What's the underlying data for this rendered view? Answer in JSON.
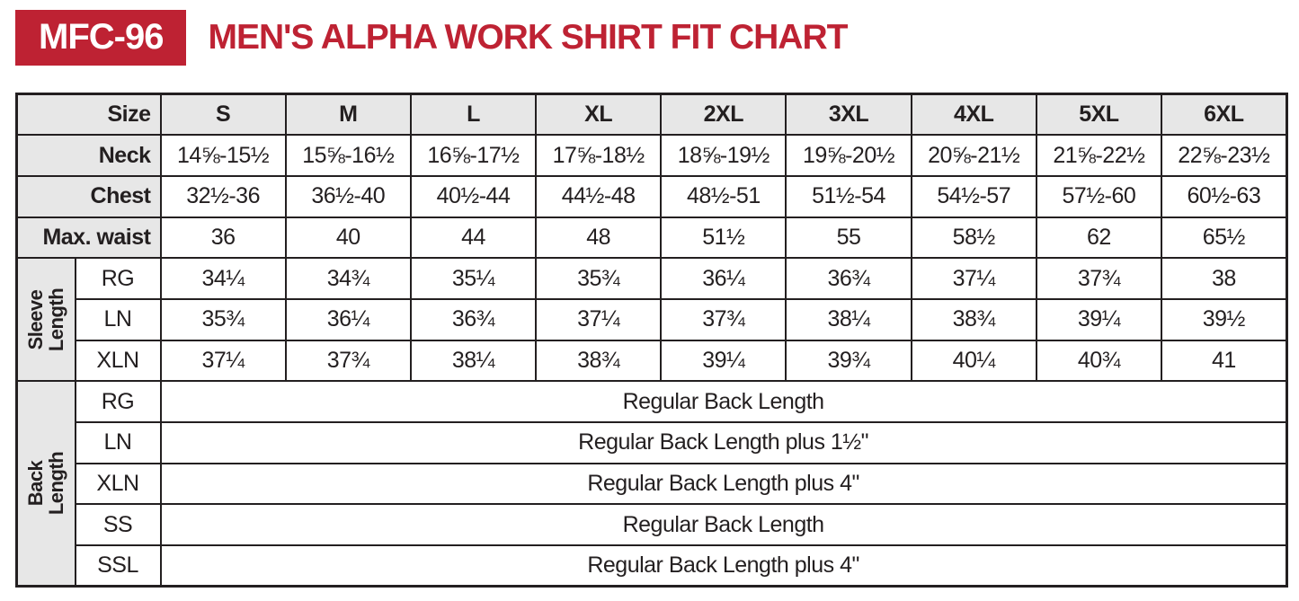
{
  "page": {
    "model_badge": "MFC-96",
    "title": "MEN'S ALPHA WORK SHIRT FIT CHART"
  },
  "colors": {
    "accent_red": "#be2233",
    "header_fill": "#e7e7e7",
    "border": "#231f20"
  },
  "chart_data": {
    "type": "table",
    "title": "MEN'S ALPHA WORK SHIRT FIT CHART",
    "model": "MFC-96",
    "size_header_label": "Size",
    "sizes": [
      "S",
      "M",
      "L",
      "XL",
      "2XL",
      "3XL",
      "4XL",
      "5XL",
      "6XL"
    ],
    "rows": [
      {
        "label": "Neck",
        "values": [
          "14⅝-15½",
          "15⅝-16½",
          "16⅝-17½",
          "17⅝-18½",
          "18⅝-19½",
          "19⅝-20½",
          "20⅝-21½",
          "21⅝-22½",
          "22⅝-23½"
        ]
      },
      {
        "label": "Chest",
        "values": [
          "32½-36",
          "36½-40",
          "40½-44",
          "44½-48",
          "48½-51",
          "51½-54",
          "54½-57",
          "57½-60",
          "60½-63"
        ]
      },
      {
        "label": "Max. waist",
        "values": [
          "36",
          "40",
          "44",
          "48",
          "51½",
          "55",
          "58½",
          "62",
          "65½"
        ]
      }
    ],
    "sleeve_length": {
      "group_label": "Sleeve Length",
      "rows": [
        {
          "label": "RG",
          "values": [
            "34¼",
            "34¾",
            "35¼",
            "35¾",
            "36¼",
            "36¾",
            "37¼",
            "37¾",
            "38"
          ]
        },
        {
          "label": "LN",
          "values": [
            "35¾",
            "36¼",
            "36¾",
            "37¼",
            "37¾",
            "38¼",
            "38¾",
            "39¼",
            "39½"
          ]
        },
        {
          "label": "XLN",
          "values": [
            "37¼",
            "37¾",
            "38¼",
            "38¾",
            "39¼",
            "39¾",
            "40¼",
            "40¾",
            "41"
          ]
        }
      ]
    },
    "back_length": {
      "group_label": "Back Length",
      "rows": [
        {
          "label": "RG",
          "value": "Regular Back Length"
        },
        {
          "label": "LN",
          "value": "Regular Back Length plus 1½\""
        },
        {
          "label": "XLN",
          "value": "Regular Back Length plus 4\""
        },
        {
          "label": "SS",
          "value": "Regular Back Length"
        },
        {
          "label": "SSL",
          "value": "Regular Back Length plus 4\""
        }
      ]
    }
  }
}
